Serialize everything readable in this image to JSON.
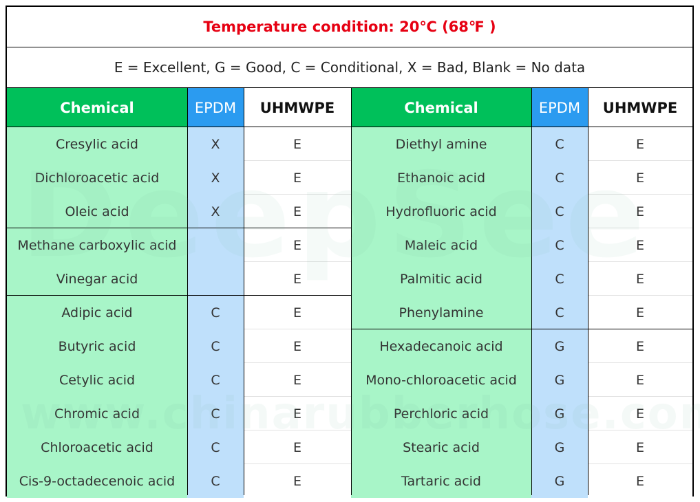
{
  "title": "Temperature condition: 20℃ (68℉ )",
  "legend": "E = Excellent, G = Good, C = Conditional, X = Bad, Blank = No data",
  "headers": {
    "chemical": "Chemical",
    "epdm": "EPDM",
    "uhmwpe": "UHMWPE"
  },
  "left_rows": [
    {
      "chemical": "Cresylic acid",
      "epdm": "X",
      "uhmwpe": "E"
    },
    {
      "chemical": "Dichloroacetic acid",
      "epdm": "X",
      "uhmwpe": "E"
    },
    {
      "chemical": "Oleic acid",
      "epdm": "X",
      "uhmwpe": "E"
    },
    {
      "chemical": "Methane carboxylic acid",
      "epdm": "",
      "uhmwpe": "E"
    },
    {
      "chemical": "Vinegar acid",
      "epdm": "",
      "uhmwpe": "E"
    },
    {
      "chemical": "Adipic acid",
      "epdm": "C",
      "uhmwpe": "E"
    },
    {
      "chemical": "Butyric acid",
      "epdm": "C",
      "uhmwpe": "E"
    },
    {
      "chemical": "Cetylic acid",
      "epdm": "C",
      "uhmwpe": "E"
    },
    {
      "chemical": "Chromic acid",
      "epdm": "C",
      "uhmwpe": "E"
    },
    {
      "chemical": "Chloroacetic acid",
      "epdm": "C",
      "uhmwpe": "E"
    },
    {
      "chemical": "Cis-9-octadecenoic acid",
      "epdm": "C",
      "uhmwpe": "E"
    }
  ],
  "right_rows": [
    {
      "chemical": "Diethyl amine",
      "epdm": "C",
      "uhmwpe": "E"
    },
    {
      "chemical": "Ethanoic acid",
      "epdm": "C",
      "uhmwpe": "E"
    },
    {
      "chemical": "Hydrofluoric acid",
      "epdm": "C",
      "uhmwpe": "E"
    },
    {
      "chemical": "Maleic acid",
      "epdm": "C",
      "uhmwpe": "E"
    },
    {
      "chemical": "Palmitic acid",
      "epdm": "C",
      "uhmwpe": "E"
    },
    {
      "chemical": "Phenylamine",
      "epdm": "C",
      "uhmwpe": "E"
    },
    {
      "chemical": "Hexadecanoic acid",
      "epdm": "G",
      "uhmwpe": "E"
    },
    {
      "chemical": "Mono-chloroacetic acid",
      "epdm": "G",
      "uhmwpe": "E"
    },
    {
      "chemical": "Perchloric acid",
      "epdm": "G",
      "uhmwpe": "E"
    },
    {
      "chemical": "Stearic acid",
      "epdm": "G",
      "uhmwpe": "E"
    },
    {
      "chemical": "Tartaric acid",
      "epdm": "G",
      "uhmwpe": "E"
    }
  ],
  "watermark": {
    "brand": "DeepSee",
    "url": "www.chinarubberhose.com"
  },
  "colors": {
    "title_red": "#e60012",
    "header_green": "#00c05a",
    "header_blue": "#2b9bf0",
    "chemical_bg": "#a8f5c8",
    "epdm_bg": "#bfe0fb"
  }
}
